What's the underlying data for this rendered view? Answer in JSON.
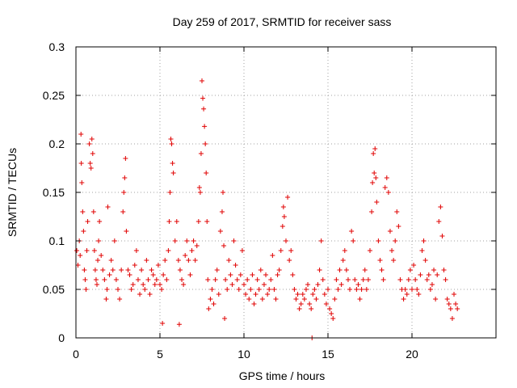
{
  "chart_data": {
    "type": "scatter",
    "title": "Day 259 of 2017, SRMTID for receiver sass",
    "xlabel": "GPS time / hours",
    "ylabel": "SRMTID / TECUs",
    "xlim": [
      0,
      25
    ],
    "ylim": [
      0,
      0.3
    ],
    "xticks": [
      0,
      5,
      10,
      15,
      20
    ],
    "xtick_labels": [
      "0",
      "5",
      "10",
      "15",
      "20"
    ],
    "yticks": [
      0,
      0.05,
      0.1,
      0.15,
      0.2,
      0.25,
      0.3
    ],
    "ytick_labels": [
      "0",
      "0.05",
      "0.1",
      "0.15",
      "0.2",
      "0.25",
      "0.3"
    ],
    "grid": true,
    "marker": "+",
    "series": [
      {
        "name": "SRMTID",
        "color": "#e00000",
        "points": [
          [
            0.05,
            0.09
          ],
          [
            0.12,
            0.075
          ],
          [
            0.2,
            0.1
          ],
          [
            0.25,
            0.085
          ],
          [
            0.3,
            0.21
          ],
          [
            0.32,
            0.18
          ],
          [
            0.35,
            0.16
          ],
          [
            0.4,
            0.13
          ],
          [
            0.45,
            0.11
          ],
          [
            0.5,
            0.07
          ],
          [
            0.55,
            0.06
          ],
          [
            0.6,
            0.05
          ],
          [
            0.65,
            0.09
          ],
          [
            0.7,
            0.12
          ],
          [
            0.8,
            0.2
          ],
          [
            0.85,
            0.18
          ],
          [
            0.9,
            0.175
          ],
          [
            0.95,
            0.205
          ],
          [
            1.0,
            0.19
          ],
          [
            1.05,
            0.13
          ],
          [
            1.1,
            0.09
          ],
          [
            1.15,
            0.07
          ],
          [
            1.2,
            0.06
          ],
          [
            1.25,
            0.055
          ],
          [
            1.3,
            0.08
          ],
          [
            1.35,
            0.1
          ],
          [
            1.4,
            0.12
          ],
          [
            1.5,
            0.085
          ],
          [
            1.6,
            0.07
          ],
          [
            1.7,
            0.06
          ],
          [
            1.8,
            0.04
          ],
          [
            1.85,
            0.05
          ],
          [
            1.9,
            0.135
          ],
          [
            2.0,
            0.065
          ],
          [
            2.1,
            0.08
          ],
          [
            2.2,
            0.07
          ],
          [
            2.3,
            0.1
          ],
          [
            2.4,
            0.06
          ],
          [
            2.5,
            0.05
          ],
          [
            2.6,
            0.04
          ],
          [
            2.7,
            0.07
          ],
          [
            2.8,
            0.13
          ],
          [
            2.85,
            0.15
          ],
          [
            2.9,
            0.165
          ],
          [
            2.95,
            0.185
          ],
          [
            3.0,
            0.11
          ],
          [
            3.1,
            0.07
          ],
          [
            3.2,
            0.065
          ],
          [
            3.3,
            0.05
          ],
          [
            3.4,
            0.055
          ],
          [
            3.5,
            0.075
          ],
          [
            3.6,
            0.09
          ],
          [
            3.7,
            0.06
          ],
          [
            3.8,
            0.045
          ],
          [
            3.9,
            0.07
          ],
          [
            4.0,
            0.055
          ],
          [
            4.1,
            0.05
          ],
          [
            4.2,
            0.08
          ],
          [
            4.3,
            0.06
          ],
          [
            4.4,
            0.045
          ],
          [
            4.5,
            0.07
          ],
          [
            4.6,
            0.065
          ],
          [
            4.7,
            0.055
          ],
          [
            4.8,
            0.06
          ],
          [
            4.9,
            0.075
          ],
          [
            5.0,
            0.055
          ],
          [
            5.1,
            0.05
          ],
          [
            5.15,
            0.015
          ],
          [
            5.2,
            0.065
          ],
          [
            5.3,
            0.08
          ],
          [
            5.4,
            0.06
          ],
          [
            5.5,
            0.09
          ],
          [
            5.55,
            0.12
          ],
          [
            5.6,
            0.15
          ],
          [
            5.65,
            0.205
          ],
          [
            5.7,
            0.2
          ],
          [
            5.75,
            0.18
          ],
          [
            5.8,
            0.17
          ],
          [
            5.9,
            0.1
          ],
          [
            6.0,
            0.12
          ],
          [
            6.1,
            0.08
          ],
          [
            6.15,
            0.014
          ],
          [
            6.2,
            0.07
          ],
          [
            6.3,
            0.06
          ],
          [
            6.4,
            0.055
          ],
          [
            6.5,
            0.085
          ],
          [
            6.6,
            0.1
          ],
          [
            6.7,
            0.08
          ],
          [
            6.8,
            0.065
          ],
          [
            6.9,
            0.09
          ],
          [
            7.0,
            0.1
          ],
          [
            7.1,
            0.08
          ],
          [
            7.2,
            0.095
          ],
          [
            7.3,
            0.12
          ],
          [
            7.35,
            0.155
          ],
          [
            7.4,
            0.15
          ],
          [
            7.45,
            0.19
          ],
          [
            7.5,
            0.265
          ],
          [
            7.55,
            0.247
          ],
          [
            7.6,
            0.236
          ],
          [
            7.65,
            0.218
          ],
          [
            7.7,
            0.2
          ],
          [
            7.75,
            0.17
          ],
          [
            7.8,
            0.12
          ],
          [
            7.85,
            0.06
          ],
          [
            7.9,
            0.03
          ],
          [
            8.0,
            0.04
          ],
          [
            8.1,
            0.05
          ],
          [
            8.2,
            0.035
          ],
          [
            8.3,
            0.06
          ],
          [
            8.4,
            0.07
          ],
          [
            8.5,
            0.045
          ],
          [
            8.6,
            0.11
          ],
          [
            8.7,
            0.13
          ],
          [
            8.75,
            0.15
          ],
          [
            8.8,
            0.095
          ],
          [
            8.85,
            0.02
          ],
          [
            8.9,
            0.06
          ],
          [
            9.0,
            0.05
          ],
          [
            9.1,
            0.08
          ],
          [
            9.2,
            0.065
          ],
          [
            9.3,
            0.055
          ],
          [
            9.4,
            0.1
          ],
          [
            9.5,
            0.075
          ],
          [
            9.6,
            0.06
          ],
          [
            9.7,
            0.05
          ],
          [
            9.8,
            0.065
          ],
          [
            9.9,
            0.09
          ],
          [
            10.0,
            0.055
          ],
          [
            10.1,
            0.045
          ],
          [
            10.2,
            0.06
          ],
          [
            10.3,
            0.04
          ],
          [
            10.4,
            0.05
          ],
          [
            10.5,
            0.065
          ],
          [
            10.6,
            0.035
          ],
          [
            10.7,
            0.045
          ],
          [
            10.8,
            0.06
          ],
          [
            10.9,
            0.05
          ],
          [
            11.0,
            0.07
          ],
          [
            11.1,
            0.04
          ],
          [
            11.2,
            0.055
          ],
          [
            11.3,
            0.065
          ],
          [
            11.4,
            0.045
          ],
          [
            11.5,
            0.05
          ],
          [
            11.6,
            0.06
          ],
          [
            11.7,
            0.085
          ],
          [
            11.8,
            0.05
          ],
          [
            11.9,
            0.04
          ],
          [
            12.0,
            0.065
          ],
          [
            12.1,
            0.07
          ],
          [
            12.2,
            0.09
          ],
          [
            12.3,
            0.115
          ],
          [
            12.35,
            0.135
          ],
          [
            12.4,
            0.125
          ],
          [
            12.5,
            0.1
          ],
          [
            12.6,
            0.145
          ],
          [
            12.7,
            0.08
          ],
          [
            12.8,
            0.09
          ],
          [
            12.9,
            0.065
          ],
          [
            13.0,
            0.05
          ],
          [
            13.1,
            0.04
          ],
          [
            13.2,
            0.045
          ],
          [
            13.3,
            0.03
          ],
          [
            13.4,
            0.035
          ],
          [
            13.5,
            0.045
          ],
          [
            13.6,
            0.04
          ],
          [
            13.7,
            0.05
          ],
          [
            13.8,
            0.055
          ],
          [
            13.9,
            0.035
          ],
          [
            14.0,
            0.03
          ],
          [
            14.05,
            0.0
          ],
          [
            14.1,
            0.045
          ],
          [
            14.2,
            0.05
          ],
          [
            14.3,
            0.04
          ],
          [
            14.4,
            0.055
          ],
          [
            14.5,
            0.07
          ],
          [
            14.6,
            0.1
          ],
          [
            14.7,
            0.06
          ],
          [
            14.8,
            0.045
          ],
          [
            14.9,
            0.035
          ],
          [
            15.0,
            0.05
          ],
          [
            15.1,
            0.03
          ],
          [
            15.2,
            0.025
          ],
          [
            15.3,
            0.02
          ],
          [
            15.4,
            0.04
          ],
          [
            15.5,
            0.06
          ],
          [
            15.6,
            0.05
          ],
          [
            15.7,
            0.07
          ],
          [
            15.8,
            0.055
          ],
          [
            15.9,
            0.08
          ],
          [
            16.0,
            0.09
          ],
          [
            16.1,
            0.07
          ],
          [
            16.2,
            0.06
          ],
          [
            16.3,
            0.05
          ],
          [
            16.4,
            0.11
          ],
          [
            16.5,
            0.1
          ],
          [
            16.6,
            0.06
          ],
          [
            16.7,
            0.05
          ],
          [
            16.8,
            0.055
          ],
          [
            16.9,
            0.04
          ],
          [
            17.0,
            0.05
          ],
          [
            17.1,
            0.06
          ],
          [
            17.2,
            0.07
          ],
          [
            17.3,
            0.05
          ],
          [
            17.4,
            0.06
          ],
          [
            17.5,
            0.09
          ],
          [
            17.6,
            0.13
          ],
          [
            17.65,
            0.16
          ],
          [
            17.7,
            0.19
          ],
          [
            17.75,
            0.17
          ],
          [
            17.8,
            0.195
          ],
          [
            17.85,
            0.165
          ],
          [
            17.9,
            0.14
          ],
          [
            18.0,
            0.1
          ],
          [
            18.1,
            0.08
          ],
          [
            18.2,
            0.07
          ],
          [
            18.3,
            0.06
          ],
          [
            18.4,
            0.155
          ],
          [
            18.5,
            0.165
          ],
          [
            18.6,
            0.15
          ],
          [
            18.7,
            0.11
          ],
          [
            18.8,
            0.09
          ],
          [
            18.9,
            0.08
          ],
          [
            19.0,
            0.1
          ],
          [
            19.1,
            0.13
          ],
          [
            19.2,
            0.115
          ],
          [
            19.3,
            0.06
          ],
          [
            19.4,
            0.05
          ],
          [
            19.5,
            0.04
          ],
          [
            19.6,
            0.05
          ],
          [
            19.7,
            0.045
          ],
          [
            19.8,
            0.06
          ],
          [
            19.9,
            0.07
          ],
          [
            20.0,
            0.05
          ],
          [
            20.1,
            0.075
          ],
          [
            20.2,
            0.06
          ],
          [
            20.3,
            0.05
          ],
          [
            20.4,
            0.045
          ],
          [
            20.5,
            0.065
          ],
          [
            20.6,
            0.09
          ],
          [
            20.7,
            0.1
          ],
          [
            20.8,
            0.08
          ],
          [
            20.9,
            0.06
          ],
          [
            21.0,
            0.065
          ],
          [
            21.1,
            0.05
          ],
          [
            21.2,
            0.055
          ],
          [
            21.3,
            0.07
          ],
          [
            21.4,
            0.04
          ],
          [
            21.5,
            0.065
          ],
          [
            21.6,
            0.12
          ],
          [
            21.7,
            0.135
          ],
          [
            21.8,
            0.105
          ],
          [
            21.9,
            0.07
          ],
          [
            22.0,
            0.06
          ],
          [
            22.1,
            0.04
          ],
          [
            22.2,
            0.035
          ],
          [
            22.3,
            0.03
          ],
          [
            22.4,
            0.02
          ],
          [
            22.5,
            0.045
          ],
          [
            22.6,
            0.035
          ],
          [
            22.7,
            0.03
          ]
        ]
      }
    ]
  }
}
